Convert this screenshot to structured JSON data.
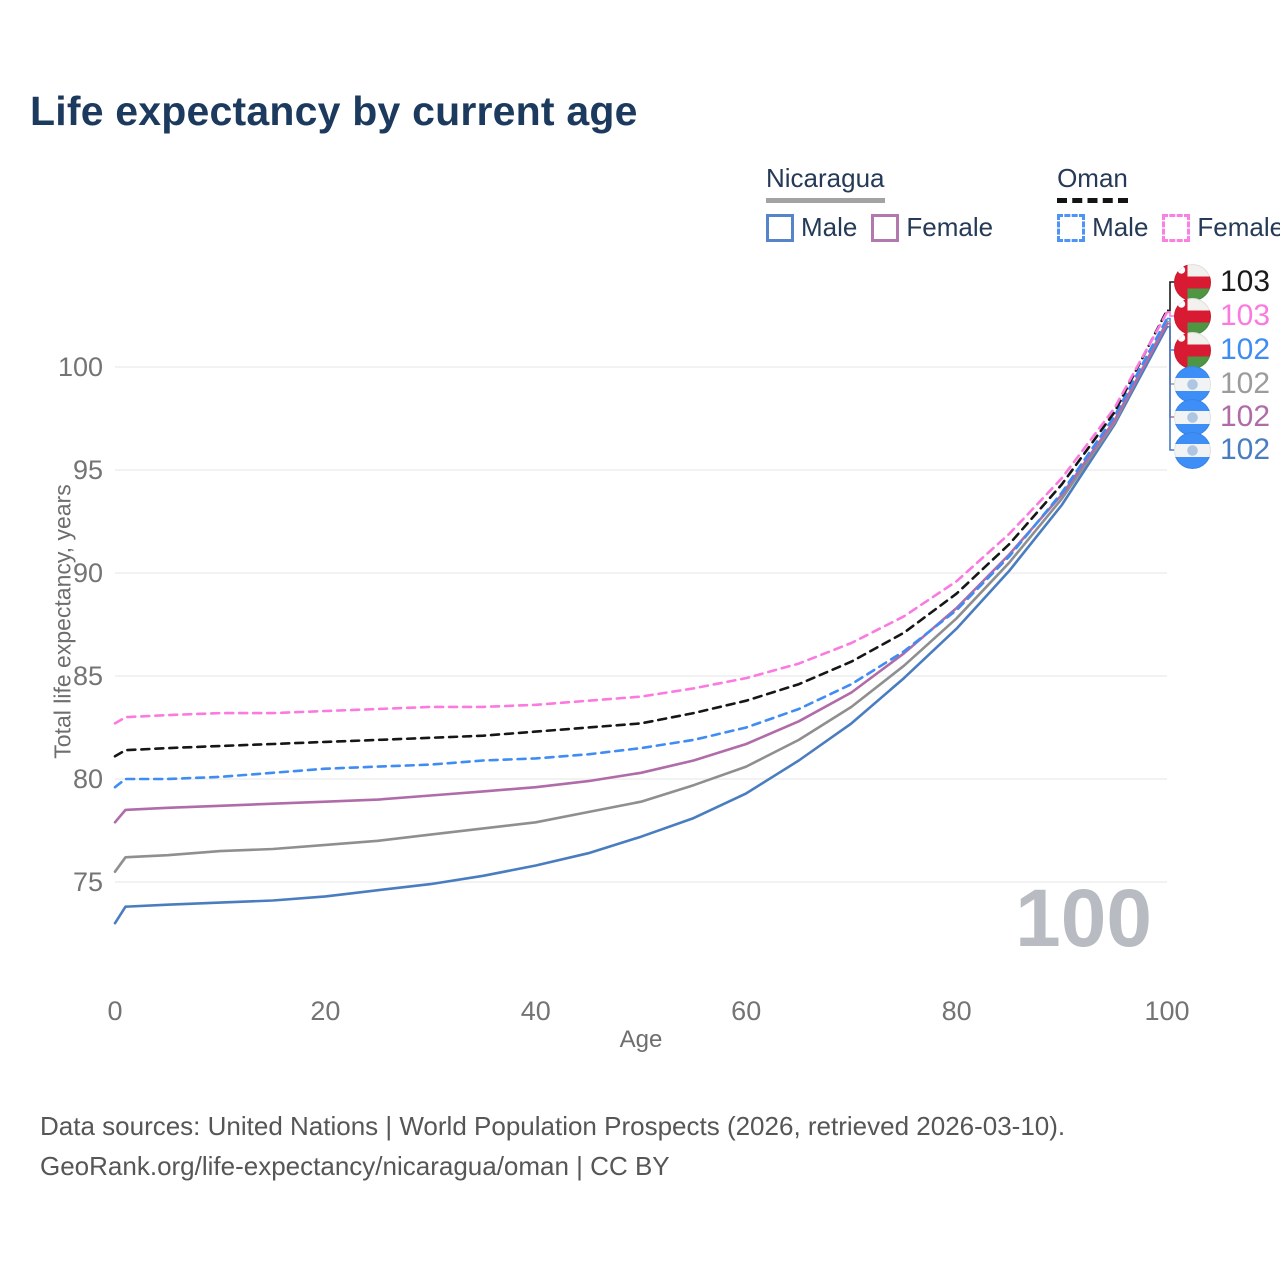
{
  "title": "Life expectancy by current age",
  "legend": {
    "groups": [
      {
        "country": "Nicaragua",
        "underline_style": "solid",
        "underline_color": "#a3a3a3",
        "items": [
          {
            "label": "Male",
            "swatch_color": "#5585c8",
            "swatch_style": "solid"
          },
          {
            "label": "Female",
            "swatch_color": "#b279ae",
            "swatch_style": "solid"
          }
        ]
      },
      {
        "country": "Oman",
        "underline_style": "dashed",
        "underline_color": "#141414",
        "items": [
          {
            "label": "Male",
            "swatch_color": "#4d94f7",
            "swatch_style": "dashed"
          },
          {
            "label": "Female",
            "swatch_color": "#fb80e3",
            "swatch_style": "dashed"
          }
        ]
      }
    ]
  },
  "axes": {
    "x_label": "Age",
    "y_label": "Total life expectancy, years"
  },
  "chart_data": {
    "type": "line",
    "title": "Life expectancy by current age",
    "xlabel": "Age",
    "ylabel": "Total life expectancy, years",
    "xlim": [
      0,
      100
    ],
    "ylim": [
      72.5,
      103.5
    ],
    "x_ticks": [
      0,
      20,
      40,
      60,
      80,
      100
    ],
    "y_ticks": [
      75,
      80,
      85,
      90,
      95,
      100
    ],
    "grid": "horizontal",
    "legend_position": "top-right",
    "ages": [
      0,
      1,
      5,
      10,
      15,
      20,
      25,
      30,
      35,
      40,
      45,
      50,
      55,
      60,
      65,
      70,
      75,
      80,
      85,
      90,
      95,
      100
    ],
    "series": [
      {
        "id": "nicaragua_male",
        "name": "Nicaragua Male",
        "style": "solid",
        "color": "#4a7dc0",
        "values": [
          73.0,
          73.8,
          73.9,
          74.0,
          74.1,
          74.3,
          74.6,
          74.9,
          75.3,
          75.8,
          76.4,
          77.2,
          78.1,
          79.3,
          80.9,
          82.7,
          84.9,
          87.3,
          90.1,
          93.3,
          97.2,
          101.95
        ]
      },
      {
        "id": "nicaragua_both",
        "name": "Nicaragua Both sexes",
        "style": "solid",
        "color": "#8f8f8f",
        "values": [
          75.5,
          76.2,
          76.3,
          76.5,
          76.6,
          76.8,
          77.0,
          77.3,
          77.6,
          77.9,
          78.4,
          78.9,
          79.7,
          80.6,
          81.9,
          83.5,
          85.5,
          87.8,
          90.5,
          93.6,
          97.3,
          102.2
        ]
      },
      {
        "id": "nicaragua_female",
        "name": "Nicaragua Female",
        "style": "solid",
        "color": "#b06ca8",
        "values": [
          77.9,
          78.5,
          78.6,
          78.7,
          78.8,
          78.9,
          79.0,
          79.2,
          79.4,
          79.6,
          79.9,
          80.3,
          80.9,
          81.7,
          82.8,
          84.2,
          86.1,
          88.3,
          90.9,
          93.8,
          97.4,
          102.1
        ]
      },
      {
        "id": "oman_male",
        "name": "Oman Male",
        "style": "dashed",
        "color": "#3f8cf2",
        "values": [
          79.6,
          80.0,
          80.0,
          80.1,
          80.3,
          80.5,
          80.6,
          80.7,
          80.9,
          81.0,
          81.2,
          81.5,
          81.9,
          82.5,
          83.4,
          84.6,
          86.2,
          88.2,
          90.8,
          93.9,
          97.6,
          102.35
        ]
      },
      {
        "id": "oman_both",
        "name": "Oman Both sexes",
        "style": "dashed",
        "color": "#161616",
        "values": [
          81.1,
          81.4,
          81.5,
          81.6,
          81.7,
          81.8,
          81.9,
          82.0,
          82.1,
          82.3,
          82.5,
          82.7,
          83.2,
          83.8,
          84.6,
          85.7,
          87.1,
          89.0,
          91.4,
          94.3,
          97.8,
          102.75
        ]
      },
      {
        "id": "oman_female",
        "name": "Oman Female",
        "style": "dashed",
        "color": "#fb7ae0",
        "values": [
          82.7,
          83.0,
          83.1,
          83.2,
          83.2,
          83.3,
          83.4,
          83.5,
          83.5,
          83.6,
          83.8,
          84.0,
          84.4,
          84.9,
          85.6,
          86.6,
          87.9,
          89.6,
          91.9,
          94.6,
          98.0,
          102.65
        ]
      }
    ]
  },
  "end_labels": [
    {
      "value": "103",
      "country": "Oman",
      "flag": "oman-flag",
      "color": "#1a1a1a",
      "series": "oman_both"
    },
    {
      "value": "103",
      "country": "Oman",
      "flag": "oman-flag",
      "color": "#fb7ae0",
      "series": "oman_female"
    },
    {
      "value": "102",
      "country": "Oman",
      "flag": "oman-flag",
      "color": "#3f8cf2",
      "series": "oman_male"
    },
    {
      "value": "102",
      "country": "Nicaragua",
      "flag": "nicaragua-flag",
      "color": "#9c9c9c",
      "series": "nicaragua_both"
    },
    {
      "value": "102",
      "country": "Nicaragua",
      "flag": "nicaragua-flag",
      "color": "#b06ca8",
      "series": "nicaragua_female"
    },
    {
      "value": "102",
      "country": "Nicaragua",
      "flag": "nicaragua-flag",
      "color": "#4a7dc0",
      "series": "nicaragua_male"
    }
  ],
  "watermark_age": "100",
  "footer": {
    "line1": "Data sources: United Nations | World Population Prospects (2026, retrieved 2026-03-10).",
    "line2": "GeoRank.org/life-expectancy/nicaragua/oman | CC BY"
  }
}
